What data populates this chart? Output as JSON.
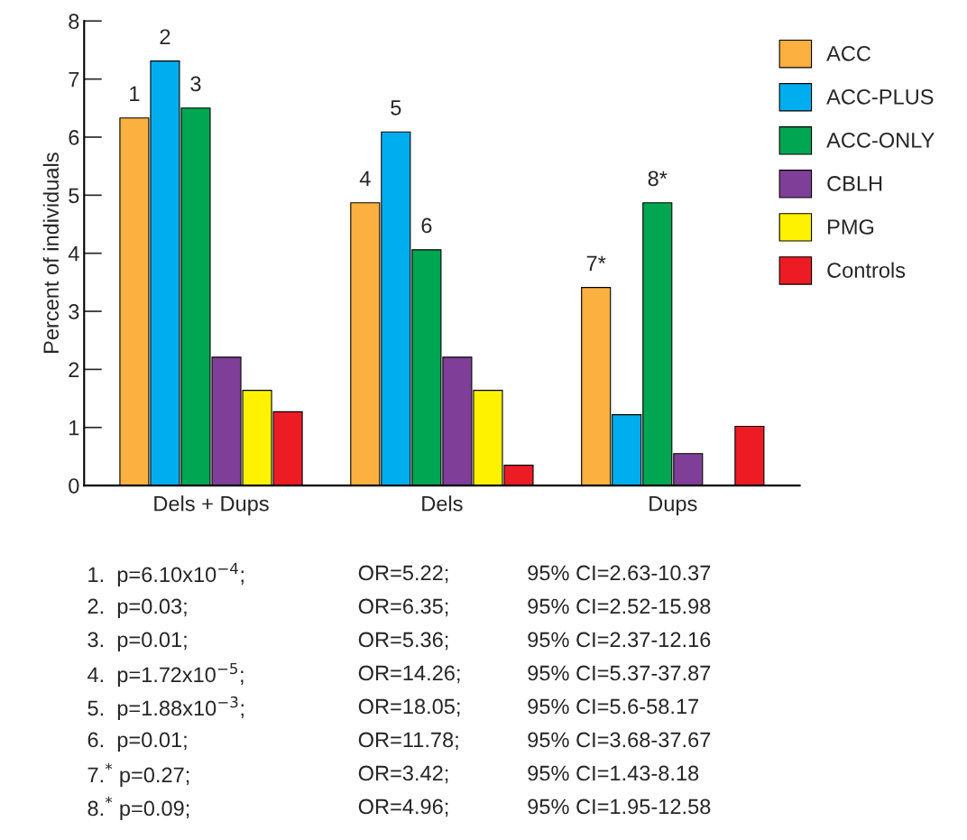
{
  "chart_data": {
    "type": "bar",
    "ylabel": "Percent of individuals",
    "categories": [
      "Dels + Dups",
      "Dels",
      "Dups"
    ],
    "series": [
      {
        "name": "ACC",
        "color": "#fbb040",
        "values": [
          6.33,
          4.87,
          3.41
        ]
      },
      {
        "name": "ACC-PLUS",
        "color": "#00aeef",
        "values": [
          7.31,
          6.09,
          1.22
        ]
      },
      {
        "name": "ACC-ONLY",
        "color": "#00a651",
        "values": [
          6.5,
          4.06,
          4.87
        ]
      },
      {
        "name": "CBLH",
        "color": "#7f3f98",
        "values": [
          2.21,
          2.21,
          0.55
        ]
      },
      {
        "name": "PMG",
        "color": "#fff200",
        "values": [
          1.64,
          1.64,
          null
        ]
      },
      {
        "name": "Controls",
        "color": "#ed1c24",
        "values": [
          1.27,
          0.35,
          1.02
        ]
      }
    ],
    "ylim": [
      0,
      8
    ],
    "yticks": [
      0,
      1,
      2,
      3,
      4,
      5,
      6,
      7,
      8
    ],
    "grid": false,
    "legend": "top right",
    "annotations": [
      "1",
      "2",
      "3",
      "4",
      "5",
      "6",
      "7*",
      "8*",
      "1.  p=6.10x10$^{−4}$;",
      "OR=5.22;",
      "95% CI=2.63-10.37",
      "2.  p=0.03;",
      "OR=6.35;",
      "95% CI=2.52-15.98",
      "3.  p=0.01;",
      "OR=5.36;",
      "95% CI=2.37-12.16",
      "4.  p=1.72x10$^{−5}$;",
      "OR=14.26;",
      "95% CI=5.37-37.87",
      "5.  p=1.88x10$^{−3}$;",
      "OR=18.05;",
      "95% CI=5.6-58.17",
      "6.  p=0.01;",
      "OR=11.78;",
      "95% CI=3.68-37.67",
      "7.$^{*}$ p=0.27;",
      "OR=3.42;",
      "95% CI=1.43-8.18",
      "8.$^{*}$ p=0.09;",
      "OR=4.96;",
      "95% CI=1.95-12.58"
    ]
  }
}
